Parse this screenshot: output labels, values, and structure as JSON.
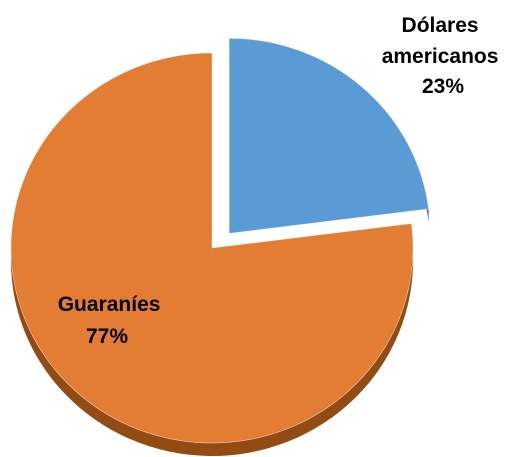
{
  "chart_data": {
    "type": "pie",
    "title": "",
    "slices": [
      {
        "name_lines": [
          "Dólares",
          "americanos"
        ],
        "value": 23,
        "value_label": "23%",
        "color": "#5b9bd5",
        "side_color": "#41709c",
        "exploded": true
      },
      {
        "name_lines": [
          "Guaraníes"
        ],
        "value": 77,
        "value_label": "77%",
        "color": "#e47d34",
        "side_color": "#934b14",
        "exploded": false
      }
    ],
    "legend": "none",
    "labels": "on-slice"
  }
}
